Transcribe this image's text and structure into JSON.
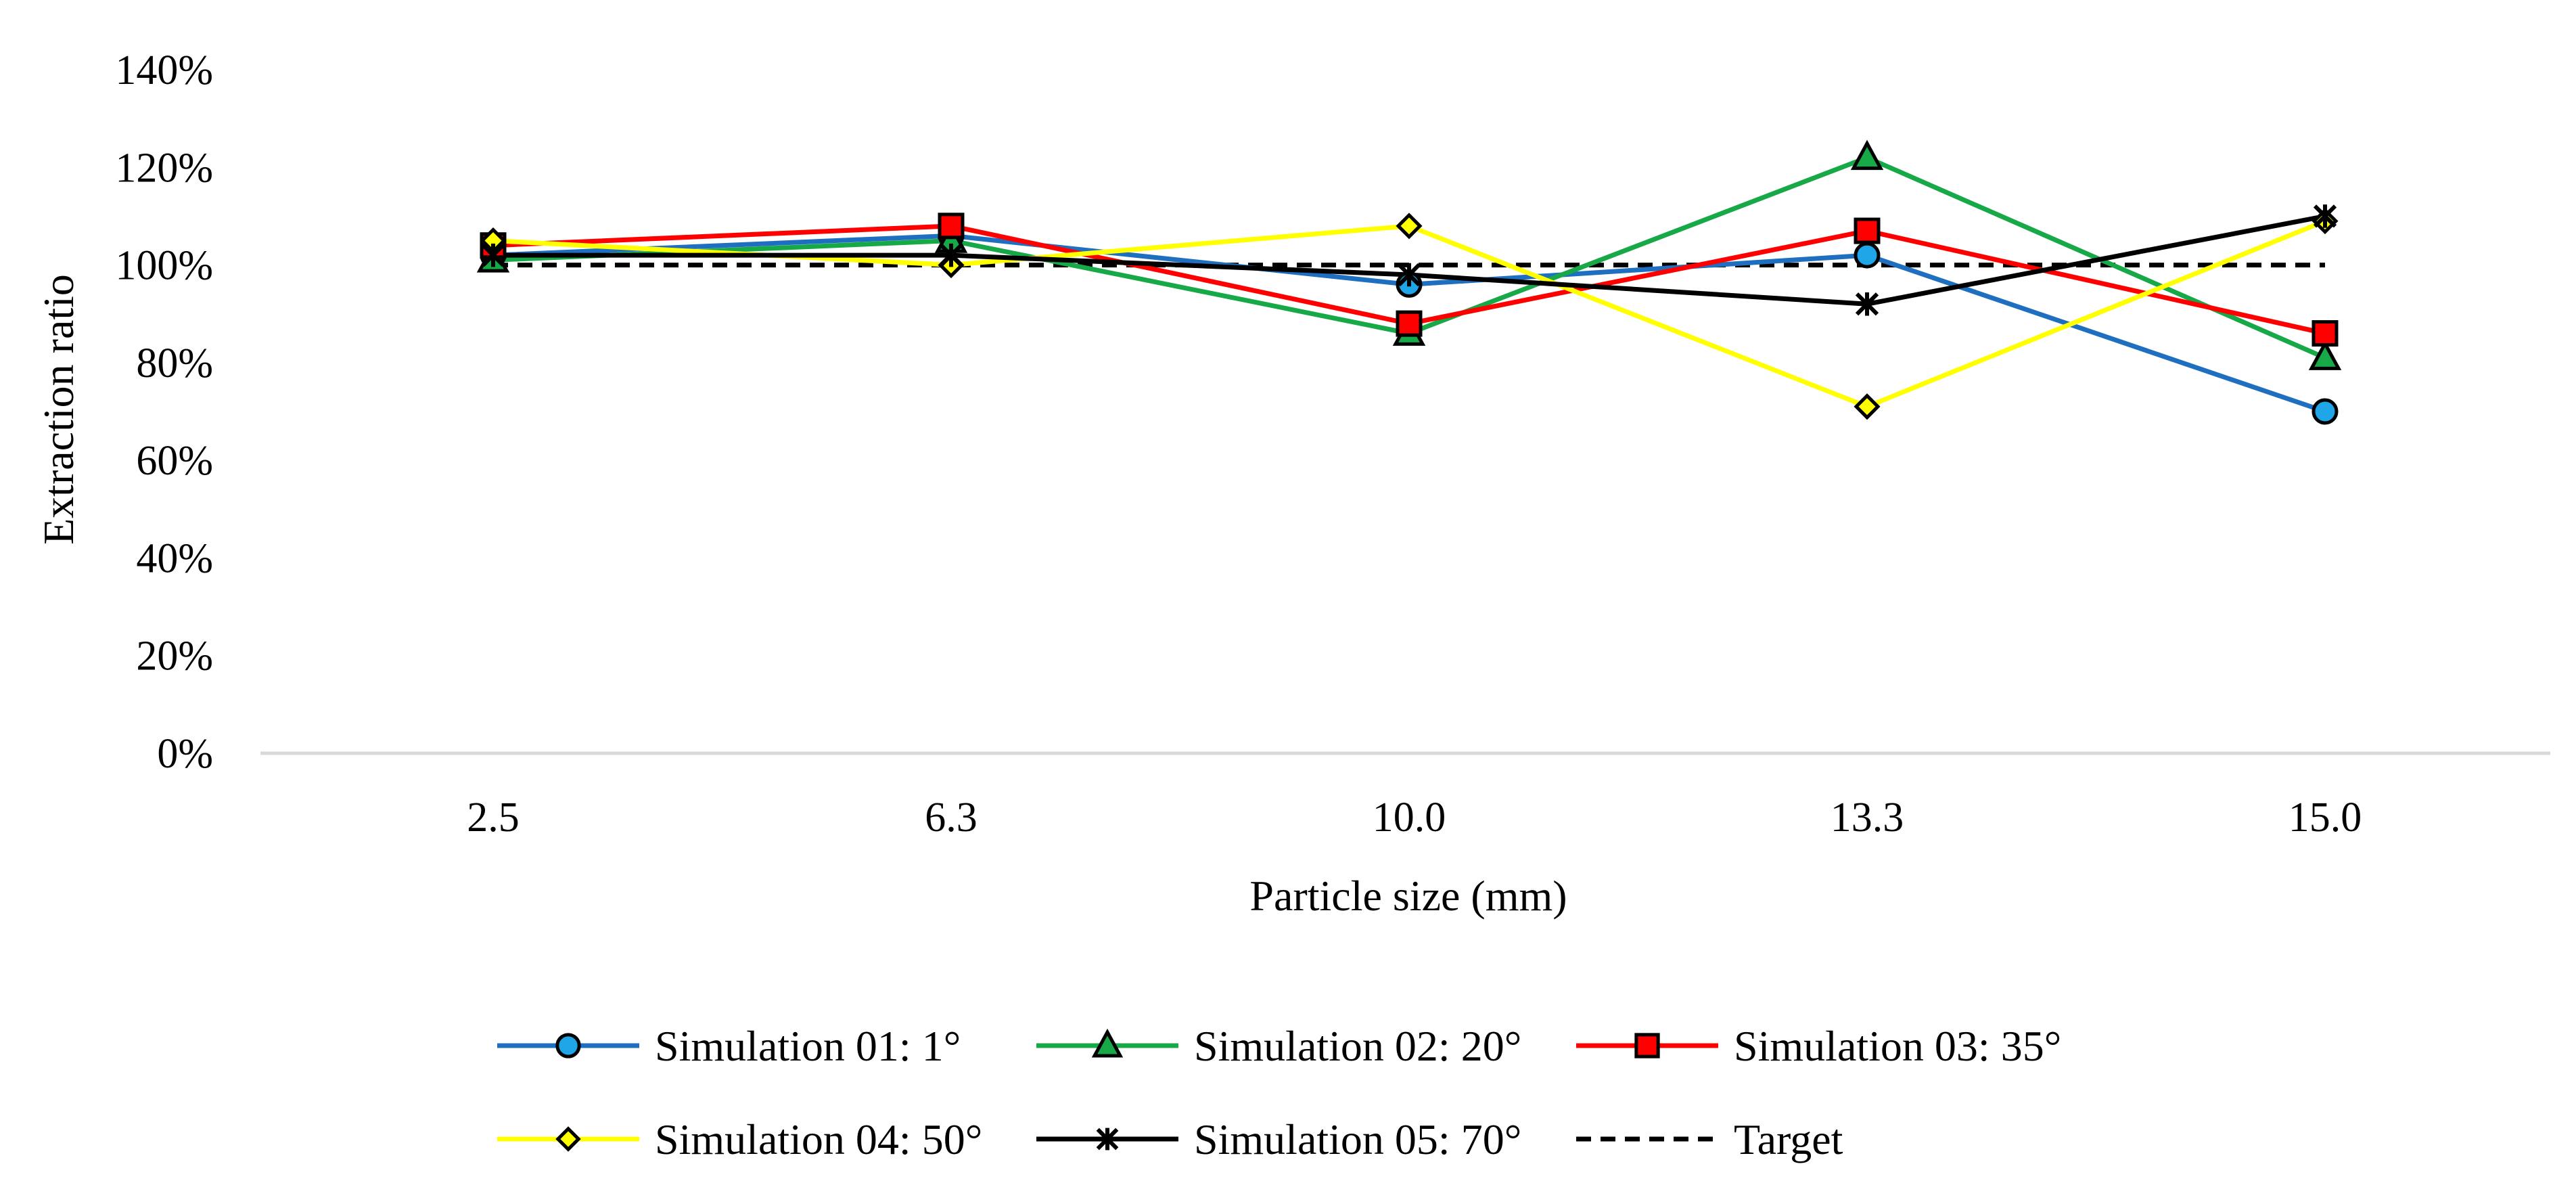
{
  "chart_data": {
    "type": "line",
    "title": "",
    "xlabel": "Particle size (mm)",
    "ylabel": "Extraction ratio",
    "categories": [
      "2.5",
      "6.3",
      "10.0",
      "13.3",
      "15.0"
    ],
    "ylim": [
      0,
      1.4
    ],
    "yticks": [
      0,
      0.2,
      0.4,
      0.6,
      0.8,
      1.0,
      1.2,
      1.4
    ],
    "ytick_labels": [
      "0%",
      "20%",
      "40%",
      "60%",
      "80%",
      "100%",
      "120%",
      "140%"
    ],
    "grid": false,
    "legend_position": "bottom",
    "series": [
      {
        "name": "Simulation 01: 1°",
        "color": "#1F6FC1",
        "marker": "circle",
        "marker_fill": "#1EA6E8",
        "values": [
          1.02,
          1.06,
          0.96,
          1.02,
          0.7
        ]
      },
      {
        "name": "Simulation 02: 20°",
        "color": "#17A847",
        "marker": "triangle",
        "marker_fill": "#17A847",
        "values": [
          1.01,
          1.05,
          0.86,
          1.22,
          0.81
        ]
      },
      {
        "name": "Simulation 03: 35°",
        "color": "#FF0000",
        "marker": "square",
        "marker_fill": "#FF0000",
        "values": [
          1.04,
          1.08,
          0.88,
          1.07,
          0.86
        ]
      },
      {
        "name": "Simulation 04: 50°",
        "color": "#FFFF00",
        "marker": "diamond",
        "marker_fill": "#FFFF00",
        "values": [
          1.05,
          1.0,
          1.08,
          0.71,
          1.09
        ]
      },
      {
        "name": "Simulation 05: 70°",
        "color": "#000000",
        "marker": "star",
        "marker_fill": "#000000",
        "values": [
          1.02,
          1.02,
          0.98,
          0.92,
          1.1
        ]
      },
      {
        "name": "Target",
        "color": "#000000",
        "marker": "none",
        "dashed": true,
        "values": [
          1.0,
          1.0,
          1.0,
          1.0,
          1.0
        ]
      }
    ]
  }
}
